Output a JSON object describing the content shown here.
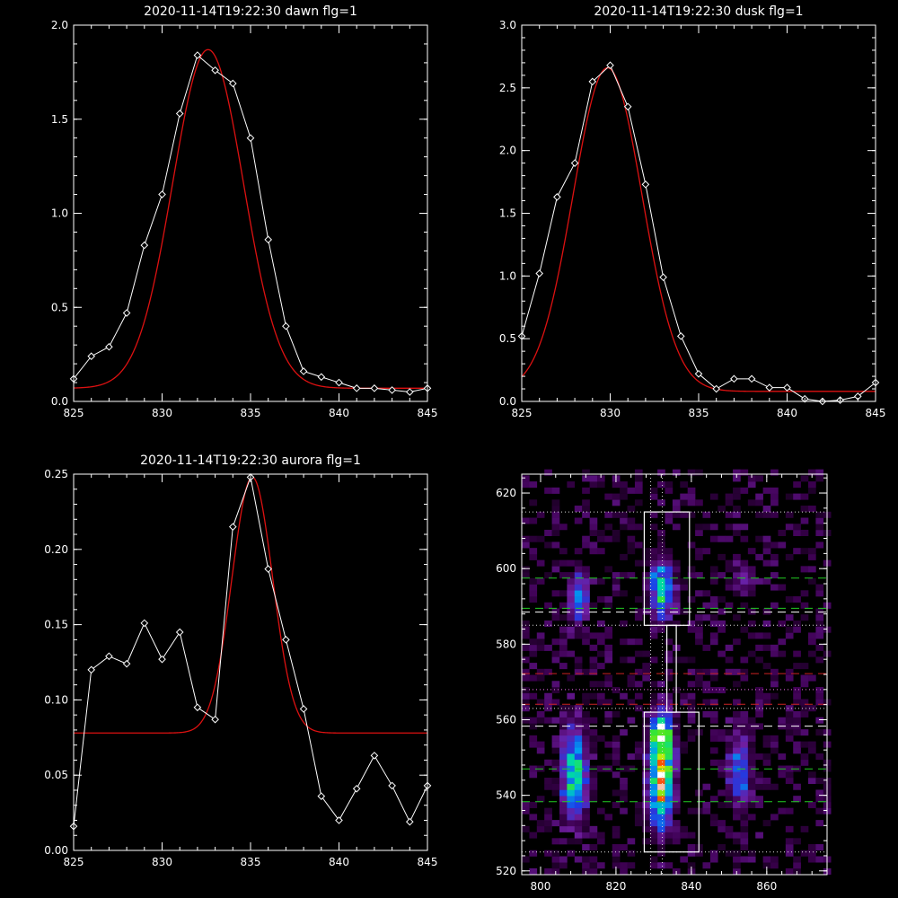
{
  "colors": {
    "background": "#000000",
    "axes": "#ffffff",
    "data": "#ffffff",
    "fit": "#dd1111",
    "box": "#ffffff",
    "green_guide": "#22cc22",
    "red_guide": "#cc2222"
  },
  "chart_data": [
    {
      "id": "dawn",
      "type": "line",
      "title": "2020-11-14T19:22:30 dawn flg=1",
      "xlim": [
        825,
        845
      ],
      "ylim": [
        0.0,
        2.0
      ],
      "xticks": [
        825,
        830,
        835,
        840,
        845
      ],
      "xtick_labels": [
        "825",
        "830",
        "835",
        "840",
        "845"
      ],
      "yticks": [
        0.0,
        0.5,
        1.0,
        1.5,
        2.0
      ],
      "ytick_labels": [
        "0.0",
        "0.5",
        "1.0",
        "1.5",
        "2.0"
      ],
      "series": [
        {
          "role": "data",
          "marker": "diamond",
          "x": [
            825,
            826,
            827,
            828,
            829,
            830,
            831,
            832,
            833,
            834,
            835,
            836,
            837,
            838,
            839,
            840,
            841,
            842,
            843,
            844,
            845
          ],
          "y": [
            0.12,
            0.24,
            0.29,
            0.47,
            0.83,
            1.1,
            1.53,
            1.84,
            1.76,
            1.69,
            1.4,
            0.86,
            0.4,
            0.16,
            0.13,
            0.1,
            0.07,
            0.07,
            0.06,
            0.05,
            0.07
          ]
        },
        {
          "role": "fit",
          "model": "gaussian",
          "amplitude": 1.8,
          "center": 832.6,
          "sigma": 2.0,
          "baseline": 0.07
        }
      ]
    },
    {
      "id": "dusk",
      "type": "line",
      "title": "2020-11-14T19:22:30 dusk flg=1",
      "xlim": [
        825,
        845
      ],
      "ylim": [
        0.0,
        3.0
      ],
      "xticks": [
        825,
        830,
        835,
        840,
        845
      ],
      "xtick_labels": [
        "825",
        "830",
        "835",
        "840",
        "845"
      ],
      "yticks": [
        0.0,
        0.5,
        1.0,
        1.5,
        2.0,
        2.5,
        3.0
      ],
      "ytick_labels": [
        "0.0",
        "0.5",
        "1.0",
        "1.5",
        "2.0",
        "2.5",
        "3.0"
      ],
      "series": [
        {
          "role": "data",
          "marker": "diamond",
          "x": [
            825,
            826,
            827,
            828,
            829,
            830,
            831,
            832,
            833,
            834,
            835,
            836,
            837,
            838,
            839,
            840,
            841,
            842,
            843,
            844,
            845
          ],
          "y": [
            0.52,
            1.02,
            1.63,
            1.9,
            2.55,
            2.68,
            2.35,
            1.73,
            0.99,
            0.52,
            0.22,
            0.1,
            0.18,
            0.18,
            0.11,
            0.11,
            0.02,
            0.0,
            0.01,
            0.04,
            0.15
          ]
        },
        {
          "role": "fit",
          "model": "gaussian",
          "amplitude": 2.58,
          "center": 829.85,
          "sigma": 1.95,
          "baseline": 0.08
        }
      ]
    },
    {
      "id": "aurora",
      "type": "line",
      "title": "2020-11-14T19:22:30 aurora flg=1",
      "xlim": [
        825,
        845
      ],
      "ylim": [
        0.0,
        0.25
      ],
      "xticks": [
        825,
        830,
        835,
        840,
        845
      ],
      "xtick_labels": [
        "825",
        "830",
        "835",
        "840",
        "845"
      ],
      "yticks": [
        0.0,
        0.05,
        0.1,
        0.15,
        0.2,
        0.25
      ],
      "ytick_labels": [
        "0.00",
        "0.05",
        "0.10",
        "0.15",
        "0.20",
        "0.25"
      ],
      "series": [
        {
          "role": "data",
          "marker": "diamond",
          "x": [
            825,
            826,
            827,
            828,
            829,
            830,
            831,
            832,
            833,
            834,
            835,
            836,
            837,
            838,
            839,
            840,
            841,
            842,
            843,
            844,
            845
          ],
          "y": [
            0.016,
            0.12,
            0.129,
            0.124,
            0.151,
            0.127,
            0.145,
            0.095,
            0.087,
            0.215,
            0.248,
            0.187,
            0.14,
            0.094,
            0.036,
            0.02,
            0.041,
            0.063,
            0.043,
            0.019,
            0.043
          ]
        },
        {
          "role": "fit",
          "model": "gaussian",
          "amplitude": 0.17,
          "center": 835.1,
          "sigma": 1.15,
          "baseline": 0.078
        }
      ]
    },
    {
      "id": "image",
      "type": "heatmap",
      "xlim": [
        795,
        876
      ],
      "ylim": [
        519,
        625
      ],
      "xticks": [
        800,
        820,
        840,
        860
      ],
      "xtick_labels": [
        "800",
        "820",
        "840",
        "860"
      ],
      "yticks": [
        520,
        540,
        560,
        580,
        600,
        620
      ],
      "ytick_labels": [
        "520",
        "540",
        "560",
        "580",
        "600",
        "620"
      ],
      "pixel_size": [
        2,
        1.6
      ],
      "sources": [
        {
          "x": 831,
          "y": 545,
          "sx": 2.0,
          "sy": 8.5,
          "amp": 1.0
        },
        {
          "x": 831,
          "y": 556,
          "sx": 1.8,
          "sy": 3.0,
          "amp": 0.55
        },
        {
          "x": 808,
          "y": 545,
          "sx": 2.2,
          "sy": 8.0,
          "amp": 0.6
        },
        {
          "x": 831,
          "y": 594,
          "sx": 2.0,
          "sy": 5.0,
          "amp": 0.58
        },
        {
          "x": 809,
          "y": 592,
          "sx": 1.8,
          "sy": 4.5,
          "amp": 0.38
        },
        {
          "x": 852,
          "y": 546,
          "sx": 2.0,
          "sy": 7.0,
          "amp": 0.35
        },
        {
          "x": 853,
          "y": 596,
          "sx": 2.0,
          "sy": 3.0,
          "amp": 0.2
        }
      ],
      "boxes": [
        {
          "x0": 827.5,
          "x1": 842.0,
          "y0": 525,
          "y1": 562
        },
        {
          "x0": 827.5,
          "x1": 839.5,
          "y0": 585,
          "y1": 615
        },
        {
          "x0": 833.5,
          "x1": 836.0,
          "y0": 562,
          "y1": 585
        }
      ],
      "green_dashed_y": [
        538.3,
        547.0,
        589.5,
        597.5
      ],
      "white_dashed_y": [
        558.3,
        588.5
      ],
      "red_dashed_y": [
        564.1,
        572.2
      ],
      "dotted_y": [
        525,
        563,
        568,
        585,
        615
      ],
      "dotted_x": [
        829.2,
        832.3
      ],
      "magenta_dotted_y": [
        568
      ]
    }
  ]
}
